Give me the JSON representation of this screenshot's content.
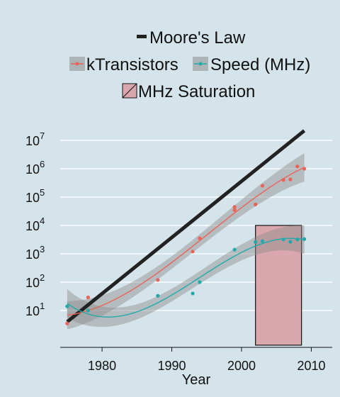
{
  "chart_data": {
    "type": "scatter",
    "xlabel": "Year",
    "ylabel": "",
    "y_scale": "log10",
    "xlim": [
      1974,
      2013
    ],
    "ylim_log10": [
      -0.3,
      7.5
    ],
    "grid": "horizontal",
    "legend_position": "top",
    "legend": {
      "moores_law": "Moore's Law",
      "ktransistors": "kTransistors",
      "speed": "Speed (MHz)",
      "saturation": "MHz Saturation"
    },
    "x_ticks": [
      {
        "value": 1980,
        "label": "1980"
      },
      {
        "value": 1990,
        "label": "1990"
      },
      {
        "value": 2000,
        "label": "2000"
      },
      {
        "value": 2010,
        "label": "2010"
      }
    ],
    "y_ticks": [
      {
        "value": 10,
        "base": "10",
        "exp": "1"
      },
      {
        "value": 100,
        "base": "10",
        "exp": "2"
      },
      {
        "value": 1000,
        "base": "10",
        "exp": "3"
      },
      {
        "value": 10000,
        "base": "10",
        "exp": "4"
      },
      {
        "value": 100000,
        "base": "10",
        "exp": "5"
      },
      {
        "value": 1000000,
        "base": "10",
        "exp": "6"
      },
      {
        "value": 10000000,
        "base": "10",
        "exp": "7"
      }
    ],
    "moores_law_line": {
      "x": [
        1975,
        2009
      ],
      "y": [
        4,
        22000000
      ]
    },
    "series": [
      {
        "name": "kTransistors",
        "color": "#e8645a",
        "x": [
          1975,
          1978,
          1988,
          1993,
          1994,
          1999,
          1999,
          2002,
          2003,
          2006,
          2007,
          2008,
          2009
        ],
        "y": [
          3.5,
          29,
          120,
          1200,
          3500,
          35000,
          45000,
          55000,
          250000,
          400000,
          420000,
          1200000,
          1000000
        ]
      },
      {
        "name": "Speed (MHz)",
        "color": "#22aaaa",
        "x": [
          1975,
          1978,
          1988,
          1993,
          1994,
          1999,
          2002,
          2003,
          2006,
          2007,
          2008,
          2009
        ],
        "y": [
          14,
          10,
          33,
          40,
          100,
          1400,
          2600,
          2800,
          3200,
          2660,
          3200,
          3300
        ]
      }
    ],
    "saturation_region": {
      "x": [
        2002,
        2008.6
      ],
      "y": [
        0.6,
        10000
      ]
    }
  },
  "colors": {
    "background": "#d5e4eb",
    "moores_law": "#222222",
    "ktransistors": "#e8645a",
    "speed": "#22aaaa",
    "ribbon": "#8c8c8c",
    "saturation_fill": "#d9a7ad",
    "grid": "#ffffff"
  }
}
